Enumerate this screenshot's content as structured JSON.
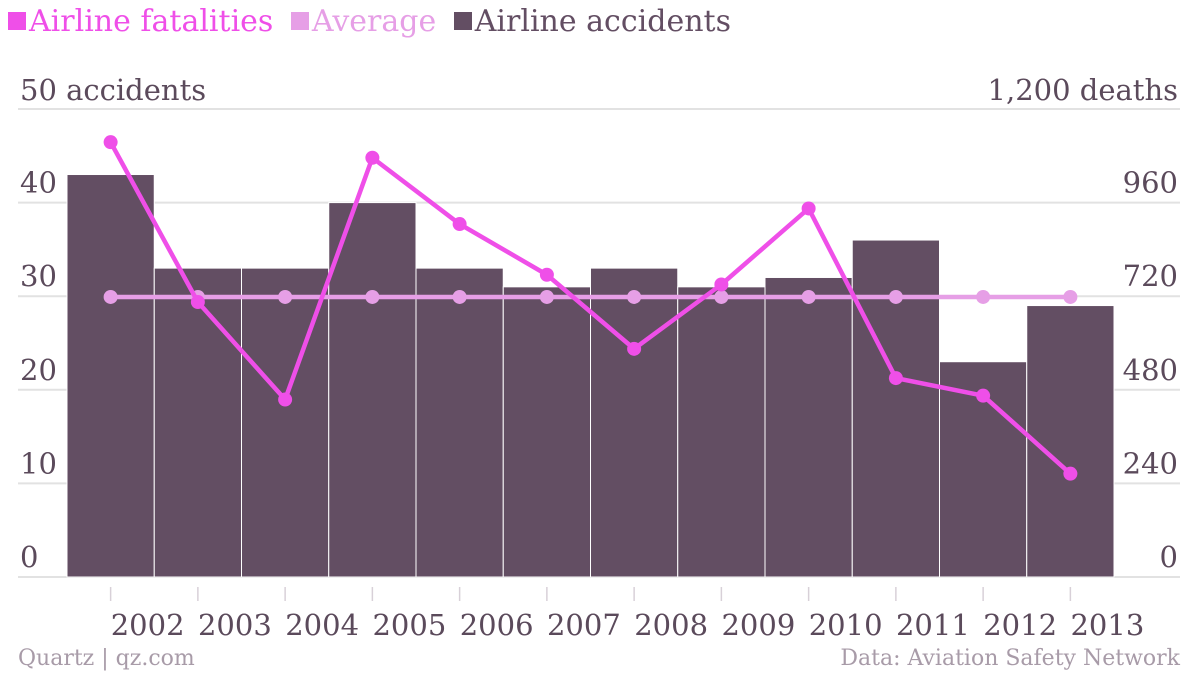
{
  "legend": {
    "fatalities": "Airline fatalities",
    "average": "Average",
    "accidents": "Airline accidents"
  },
  "colors": {
    "fatalities": "#ef4fe8",
    "average": "#e69fe6",
    "accidents": "#634e63",
    "grid": "#e2e2e2",
    "tick_text": "#5b4a5b",
    "footer_text": "#a89ba8"
  },
  "footer": {
    "source_left": "Quartz | qz.com",
    "source_right": "Data: Aviation Safety Network"
  },
  "chart_data": {
    "type": "bar+line",
    "categories": [
      "2002",
      "2003",
      "2004",
      "2005",
      "2006",
      "2007",
      "2008",
      "2009",
      "2010",
      "2011",
      "2012",
      "2013"
    ],
    "left_axis": {
      "top_label": "50 accidents",
      "ticks": [
        "0",
        "10",
        "20",
        "30",
        "40"
      ],
      "range": [
        0,
        50
      ]
    },
    "right_axis": {
      "top_label": "1,200 deaths",
      "ticks": [
        "0",
        "240",
        "480",
        "720",
        "960"
      ],
      "range": [
        0,
        1200
      ]
    },
    "series": [
      {
        "name": "Airline accidents",
        "type": "bar",
        "axis": "left",
        "values": [
          43,
          33,
          33,
          40,
          33,
          31,
          33,
          31,
          32,
          36,
          23,
          29
        ]
      },
      {
        "name": "Airline fatalities",
        "type": "line",
        "axis": "right",
        "values": [
          1115,
          705,
          455,
          1075,
          905,
          775,
          585,
          750,
          945,
          510,
          465,
          265
        ]
      },
      {
        "name": "Average",
        "type": "line",
        "axis": "right",
        "values": [
          718,
          718,
          718,
          718,
          718,
          718,
          718,
          718,
          718,
          718,
          718,
          718
        ]
      }
    ],
    "grid": true
  }
}
